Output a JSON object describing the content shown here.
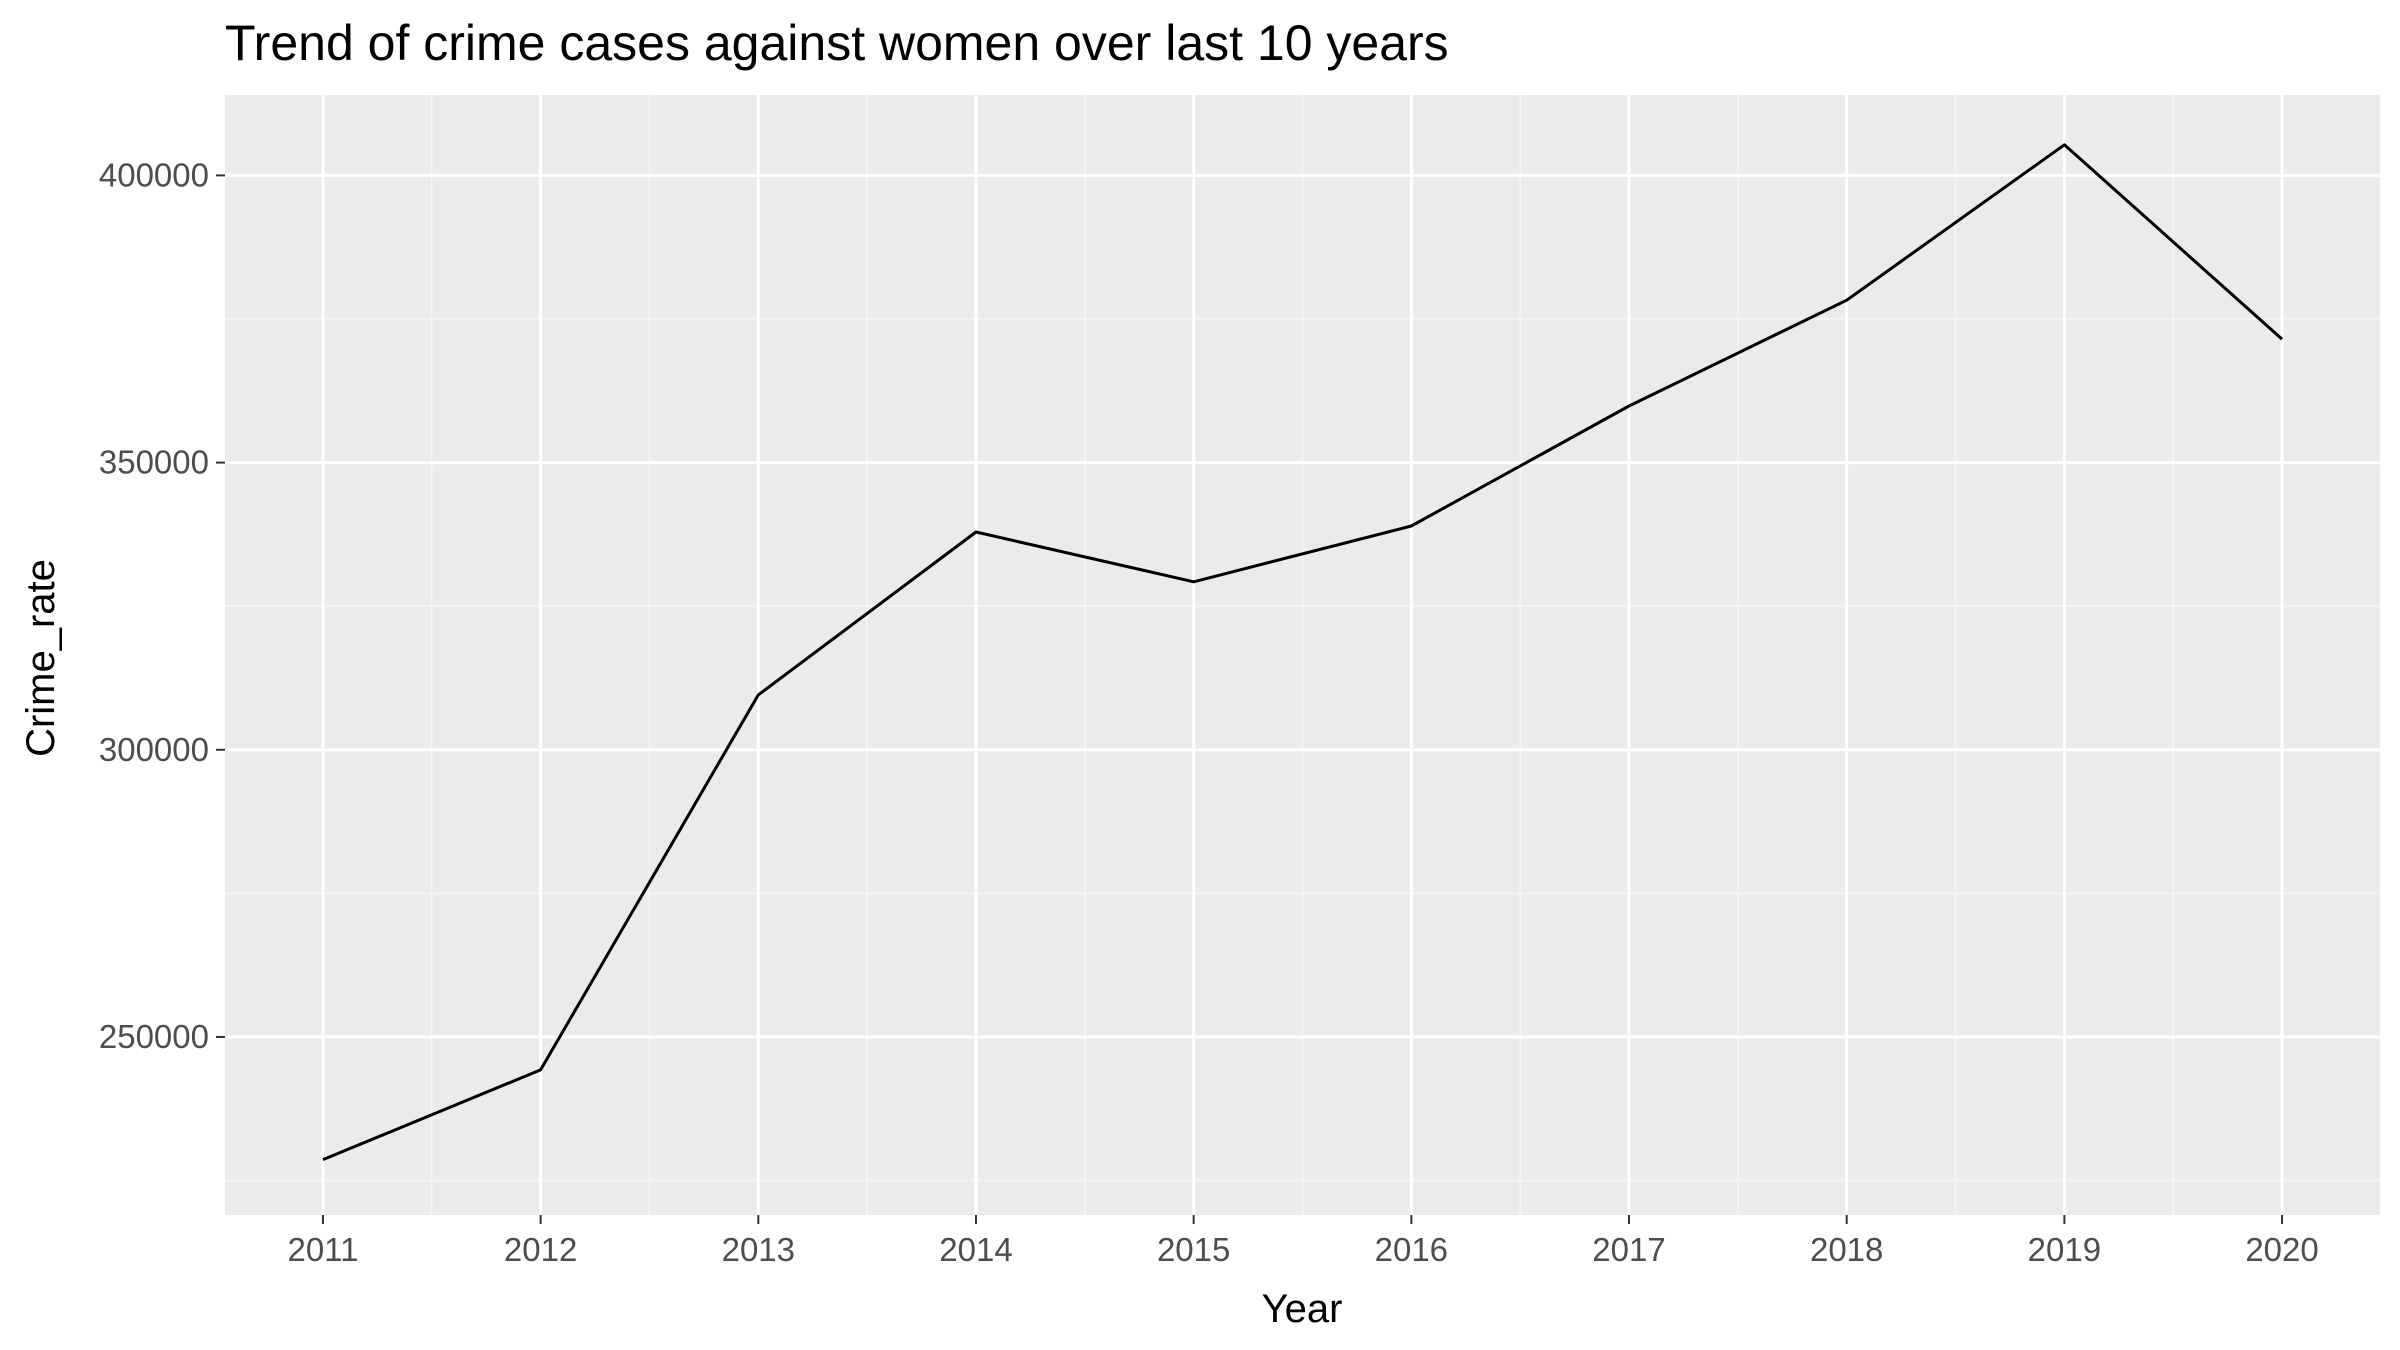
{
  "chart_data": {
    "type": "line",
    "title": "Trend of crime cases against women over last 10 years",
    "xlabel": "Year",
    "ylabel": "Crime_rate",
    "x": [
      2011,
      2012,
      2013,
      2014,
      2015,
      2016,
      2017,
      2018,
      2019,
      2020
    ],
    "series": [
      {
        "values": [
          228650,
          244270,
          309546,
          337922,
          329243,
          338954,
          359849,
          378277,
          405326,
          371503
        ]
      }
    ],
    "xlim": [
      2010.55,
      2020.45
    ],
    "ylim": [
      219000,
      414000
    ],
    "y_ticks": [
      250000,
      300000,
      350000,
      400000
    ],
    "y_tick_labels": [
      "250000",
      "300000",
      "350000",
      "400000"
    ],
    "x_ticks": [
      2011,
      2012,
      2013,
      2014,
      2015,
      2016,
      2017,
      2018,
      2019,
      2020
    ],
    "x_tick_labels": [
      "2011",
      "2012",
      "2013",
      "2014",
      "2015",
      "2016",
      "2017",
      "2018",
      "2019",
      "2020"
    ],
    "grid": true,
    "legend": "none",
    "colors": {
      "panel_background": "#ebebeb",
      "grid_major": "#ffffff",
      "grid_minor": "#f5f5f5",
      "line": "#000000",
      "tick_label": "#4d4d4d",
      "tick_mark": "#333333"
    }
  }
}
